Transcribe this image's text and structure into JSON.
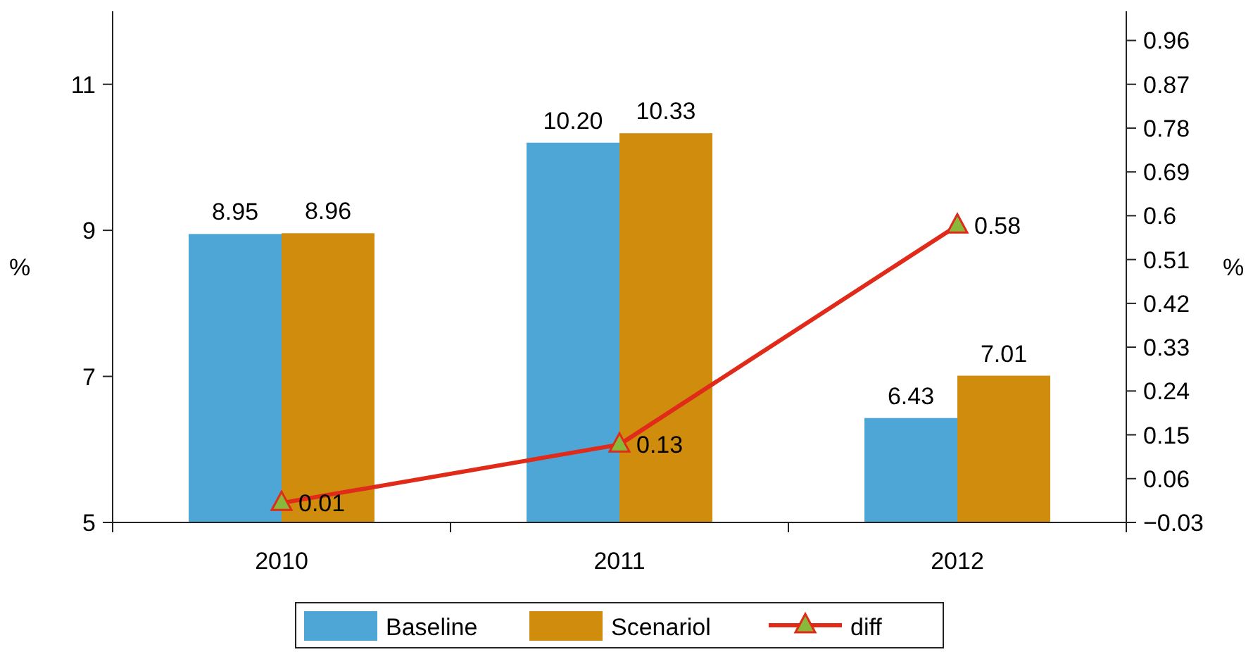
{
  "chart_data": {
    "type": "bar",
    "categories": [
      "2010",
      "2011",
      "2012"
    ],
    "series": [
      {
        "name": "Baseline",
        "color": "#4ea6d6",
        "values": [
          8.95,
          10.2,
          6.43
        ],
        "value_labels": [
          "8.95",
          "10.20",
          "6.43"
        ]
      },
      {
        "name": "Scenariol",
        "color": "#d08c0c",
        "values": [
          8.96,
          10.33,
          7.01
        ],
        "value_labels": [
          "8.96",
          "10.33",
          "7.01"
        ]
      },
      {
        "name": "diff",
        "type": "line",
        "axis": "y2",
        "color": "#e02a1a",
        "marker": "triangle",
        "values": [
          0.01,
          0.13,
          0.58
        ],
        "value_labels": [
          "0.01",
          "0.13",
          "0.58"
        ]
      }
    ],
    "ylabel": "%",
    "y2label": "%",
    "ylim": [
      5,
      12
    ],
    "yticks": [
      5,
      7,
      9,
      11
    ],
    "y2lim": [
      -0.03,
      1.02
    ],
    "y2ticks": [
      {
        "value": -0.03,
        "label": "−0.03"
      },
      0.06,
      0.15,
      0.24,
      0.33,
      0.42,
      0.51,
      0.6,
      0.69,
      0.78,
      0.87,
      0.96
    ],
    "legend": "bottom",
    "grid": false
  }
}
